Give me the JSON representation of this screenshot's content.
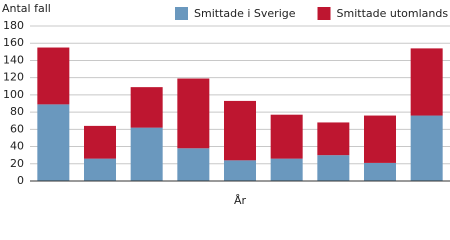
{
  "chart_data": {
    "type": "stacked-bar",
    "ylabel": "Antal fall",
    "xlabel": "År",
    "categories": [
      null,
      null,
      null,
      null,
      null,
      null,
      null,
      null,
      null
    ],
    "series": [
      {
        "name": "Smittade i Sverige",
        "color": "#6a98be",
        "values": [
          89,
          26,
          62,
          38,
          24,
          26,
          30,
          21,
          76
        ]
      },
      {
        "name": "Smittade utomlands",
        "color": "#be1630",
        "values": [
          66,
          38,
          47,
          81,
          69,
          51,
          38,
          55,
          78
        ]
      }
    ],
    "ylim": [
      0,
      180
    ],
    "yticks": [
      0,
      20,
      40,
      60,
      80,
      100,
      120,
      140,
      160,
      180
    ],
    "grid": true,
    "legend": "top"
  }
}
